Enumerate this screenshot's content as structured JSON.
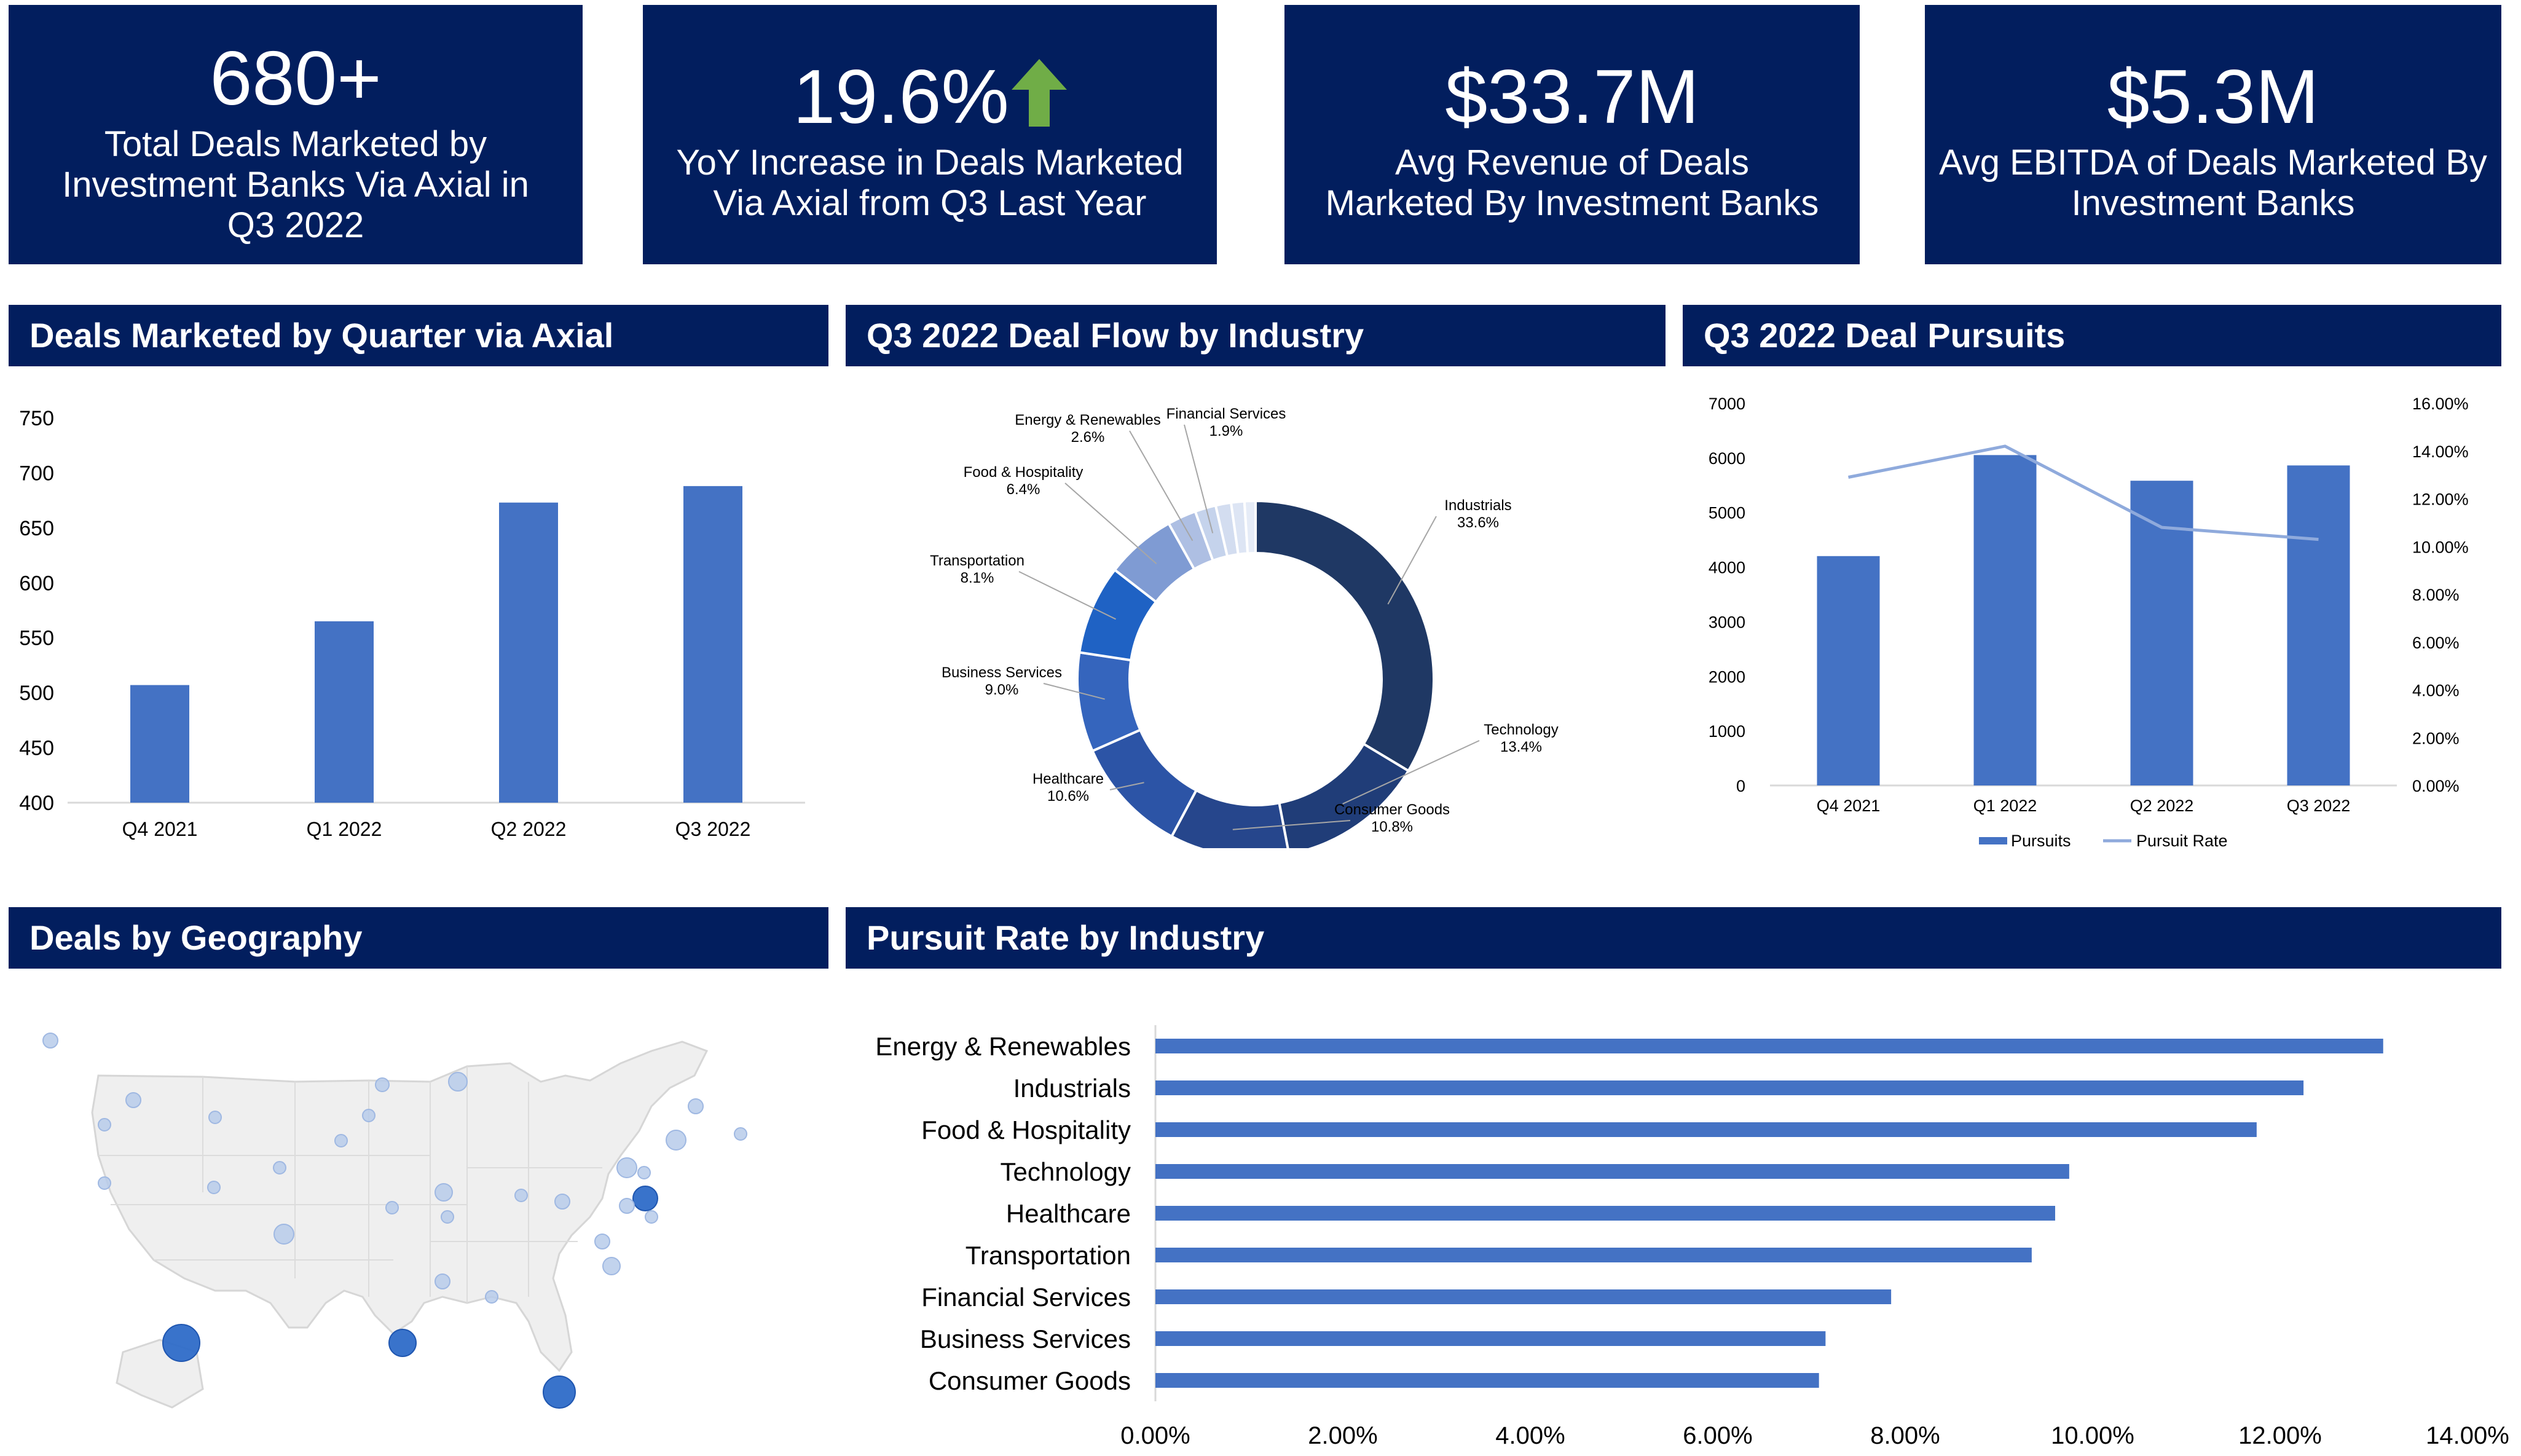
{
  "kpis": [
    {
      "value": "680+",
      "label": "Total Deals Marketed by Investment Banks Via Axial in Q3 2022"
    },
    {
      "value": "19.6%",
      "label": "YoY Increase in Deals Marketed Via Axial from Q3 Last Year"
    },
    {
      "value": "$33.7M",
      "label": "Avg Revenue of Deals Marketed By Investment Banks"
    },
    {
      "value": "$5.3M",
      "label": "Avg EBITDA of Deals Marketed By Investment Banks"
    }
  ],
  "colors": {
    "navy": "#021e5e",
    "bar": "#4472c4",
    "line": "#8faadc",
    "arrow": "#70ad47"
  },
  "headers": {
    "deals_by_quarter": "Deals Marketed by Quarter via Axial",
    "deal_flow": "Q3 2022 Deal Flow by Industry",
    "deal_pursuits": "Q3 2022 Deal Pursuits",
    "geography": "Deals by Geography",
    "pursuit_rate": "Pursuit Rate by Industry"
  },
  "chart_data": [
    {
      "id": "deals_by_quarter",
      "type": "bar",
      "title": "Deals Marketed by Quarter via Axial",
      "categories": [
        "Q4  2021",
        "Q1 2022",
        "Q2 2022",
        "Q3 2022"
      ],
      "values": [
        507,
        565,
        673,
        688
      ],
      "ylim": [
        400,
        750
      ],
      "yticks": [
        "400",
        "450",
        "500",
        "550",
        "600",
        "650",
        "700",
        "750"
      ]
    },
    {
      "id": "deal_flow",
      "type": "pie",
      "title": "Q3 2022 Deal Flow by Industry",
      "slices": [
        {
          "label": "Industrials",
          "pct": "33.6%",
          "value": 33.6,
          "color": "#1f3864"
        },
        {
          "label": "Technology",
          "pct": "13.4%",
          "value": 13.4,
          "color": "#203d78"
        },
        {
          "label": "Consumer Goods",
          "pct": "10.8%",
          "value": 10.8,
          "color": "#26468c"
        },
        {
          "label": "Healthcare",
          "pct": "10.6%",
          "value": 10.6,
          "color": "#2c54a6"
        },
        {
          "label": "Business Services",
          "pct": "9.0%",
          "value": 9.0,
          "color": "#3565bd"
        },
        {
          "label": "Transportation",
          "pct": "8.1%",
          "value": 8.1,
          "color": "#1f62c4"
        },
        {
          "label": "Food & Hospitality",
          "pct": "6.4%",
          "value": 6.4,
          "color": "#7f9bd3"
        },
        {
          "label": "Energy & Renewables",
          "pct": "2.6%",
          "value": 2.6,
          "color": "#aebfe3"
        },
        {
          "label": "Financial Services",
          "pct": "1.9%",
          "value": 1.9,
          "color": "#c5d3ec"
        },
        {
          "label": "",
          "pct": "",
          "value": 1.4,
          "color": "#d3ddf0"
        },
        {
          "label": "",
          "pct": "",
          "value": 1.2,
          "color": "#dde5f4"
        },
        {
          "label": "",
          "pct": "",
          "value": 1.0,
          "color": "#e6ecf7"
        }
      ]
    },
    {
      "id": "deal_pursuits",
      "type": "bar",
      "title": "Q3 2022 Deal Pursuits",
      "categories": [
        "Q4  2021",
        "Q1 2022",
        "Q2 2022",
        "Q3 2022"
      ],
      "series": [
        {
          "name": "Pursuits",
          "type": "bar",
          "axis": "left",
          "values": [
            4200,
            6050,
            5580,
            5860
          ]
        },
        {
          "name": "Pursuit Rate",
          "type": "line",
          "axis": "right",
          "values": [
            12.9,
            14.2,
            10.8,
            10.3
          ]
        }
      ],
      "ylim": [
        0,
        7000
      ],
      "y2lim": [
        0,
        16
      ],
      "yticks": [
        "0",
        "1000",
        "2000",
        "3000",
        "4000",
        "5000",
        "6000",
        "7000"
      ],
      "y2ticks": [
        "0.00%",
        "2.00%",
        "4.00%",
        "6.00%",
        "8.00%",
        "10.00%",
        "12.00%",
        "14.00%",
        "16.00%"
      ],
      "legend": "bottom"
    },
    {
      "id": "pursuit_rate",
      "type": "bar",
      "orientation": "horizontal",
      "title": "Pursuit Rate by Industry",
      "categories": [
        "Energy & Renewables",
        "Industrials",
        "Food & Hospitality",
        "Technology",
        "Healthcare",
        "Transportation",
        "Financial Services",
        "Business Services",
        "Consumer Goods"
      ],
      "values": [
        13.1,
        12.25,
        11.75,
        9.75,
        9.6,
        9.35,
        7.85,
        7.15,
        7.08
      ],
      "xlim": [
        0,
        14
      ],
      "xticks": [
        "0.00%",
        "2.00%",
        "4.00%",
        "6.00%",
        "8.00%",
        "10.00%",
        "12.00%",
        "14.00%"
      ]
    }
  ]
}
